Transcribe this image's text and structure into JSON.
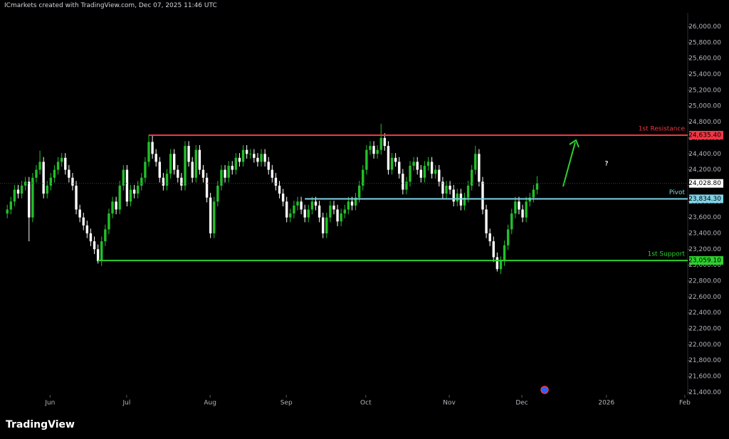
{
  "header": "ICmarkets created with TradingView.com, Dec 07, 2025 11:46 UTC",
  "footer": "TradingView",
  "chart_data": {
    "type": "candlestick",
    "up_color": "#22c02a",
    "down_color": "#ffffff",
    "open": [
      23650,
      23700,
      23800,
      23950,
      23900,
      24000,
      24050,
      23600,
      24100,
      24200,
      24300,
      23900,
      24000,
      24100,
      24200,
      24300,
      24350,
      24200,
      24100,
      24000,
      23700,
      23600,
      23500,
      23400,
      23300,
      23200,
      23050,
      23300,
      23450,
      23650,
      23800,
      23700,
      24000,
      24200,
      23800,
      23950,
      23900,
      24000,
      24100,
      24300,
      24550,
      24400,
      24300,
      24100,
      24000,
      24150,
      24400,
      24200,
      24100,
      24000,
      24500,
      24300,
      24100,
      24450,
      24200,
      24100,
      23850,
      23400,
      23800,
      24000,
      24200,
      24100,
      24250,
      24200,
      24350,
      24300,
      24450,
      24400,
      24400,
      24350,
      24300,
      24400,
      24300,
      24200,
      24100,
      24000,
      23900,
      23800,
      23600,
      23650,
      23750,
      23800,
      23700,
      23600,
      23700,
      23800,
      23750,
      23600,
      23400,
      23600,
      23750,
      23700,
      23550,
      23650,
      23700,
      23800,
      23750,
      23850,
      24000,
      24200,
      24450,
      24500,
      24400,
      24450,
      24600,
      24500,
      24200,
      24350,
      24300,
      24150,
      23950,
      24050,
      24250,
      24300,
      24200,
      24100,
      24250,
      24300,
      24150,
      24200,
      24050,
      23900,
      24000,
      23950,
      23800,
      23900,
      23750,
      23850,
      24000,
      24200,
      24400,
      24050,
      23700,
      23400,
      23300,
      23100,
      22950,
      23050,
      23250,
      23450,
      23650,
      23800,
      23700,
      23600,
      23800,
      23850,
      23950
    ],
    "high": [
      23760,
      23860,
      24010,
      24010,
      24060,
      24110,
      24110,
      24160,
      24260,
      24440,
      24360,
      24060,
      24160,
      24260,
      24360,
      24410,
      24410,
      24260,
      24160,
      24060,
      23760,
      23660,
      23560,
      23460,
      23360,
      23260,
      23360,
      23510,
      23710,
      23860,
      23860,
      24060,
      24260,
      24260,
      24010,
      24010,
      24060,
      24160,
      24360,
      24640,
      24640,
      24460,
      24360,
      24160,
      24210,
      24460,
      24460,
      24260,
      24160,
      24560,
      24560,
      24360,
      24510,
      24510,
      24260,
      24160,
      23910,
      23860,
      24060,
      24260,
      24260,
      24310,
      24310,
      24410,
      24410,
      24510,
      24510,
      24460,
      24460,
      24410,
      24460,
      24460,
      24360,
      24260,
      24160,
      24060,
      23960,
      23860,
      23710,
      23810,
      23860,
      23860,
      23760,
      23760,
      23860,
      23860,
      23810,
      23660,
      23660,
      23810,
      23810,
      23760,
      23710,
      23760,
      23860,
      23860,
      23910,
      24060,
      24260,
      24510,
      24560,
      24560,
      24510,
      24780,
      24660,
      24560,
      24410,
      24410,
      24360,
      24210,
      24110,
      24310,
      24360,
      24360,
      24260,
      24310,
      24360,
      24360,
      24260,
      24260,
      24110,
      24060,
      24060,
      24010,
      23960,
      23960,
      23910,
      24060,
      24260,
      24500,
      24460,
      24110,
      23760,
      23460,
      23360,
      23160,
      23110,
      23310,
      23510,
      23710,
      23860,
      23860,
      23760,
      23860,
      23910,
      24010,
      24120
    ],
    "low": [
      23590,
      23640,
      23740,
      23840,
      23840,
      23940,
      23300,
      23540,
      24040,
      24140,
      23840,
      23840,
      23940,
      24040,
      24140,
      24240,
      24140,
      24040,
      23940,
      23640,
      23540,
      23440,
      23340,
      23240,
      23140,
      23020,
      22990,
      23240,
      23390,
      23590,
      23640,
      23640,
      23940,
      23740,
      23740,
      23840,
      23840,
      23940,
      24040,
      24240,
      24340,
      24240,
      24040,
      23940,
      23940,
      24090,
      24140,
      24040,
      23940,
      23940,
      24240,
      24040,
      24040,
      24140,
      24040,
      23790,
      23340,
      23340,
      23740,
      23940,
      24040,
      24040,
      24140,
      24140,
      24240,
      24240,
      24340,
      24340,
      24290,
      24240,
      24240,
      24240,
      24140,
      24040,
      23940,
      23840,
      23740,
      23540,
      23540,
      23590,
      23690,
      23640,
      23540,
      23540,
      23640,
      23690,
      23540,
      23340,
      23340,
      23540,
      23640,
      23490,
      23490,
      23590,
      23640,
      23690,
      23690,
      23790,
      23940,
      24140,
      24390,
      24340,
      24340,
      24390,
      24440,
      24140,
      24140,
      24240,
      24090,
      23890,
      23890,
      23990,
      24190,
      24140,
      24040,
      24040,
      24190,
      24090,
      24090,
      23990,
      23840,
      23840,
      23890,
      23740,
      23740,
      23690,
      23690,
      23790,
      23940,
      24140,
      23990,
      23640,
      23340,
      23240,
      23040,
      22920,
      22890,
      22990,
      23190,
      23390,
      23590,
      23640,
      23540,
      23540,
      23740,
      23790,
      23890
    ],
    "close": [
      23700,
      23800,
      23950,
      23900,
      24000,
      24050,
      23600,
      24100,
      24200,
      24300,
      23900,
      24000,
      24100,
      24200,
      24300,
      24350,
      24200,
      24100,
      24000,
      23700,
      23600,
      23500,
      23400,
      23300,
      23200,
      23050,
      23300,
      23450,
      23650,
      23800,
      23700,
      24000,
      24200,
      23800,
      23950,
      23900,
      24000,
      24100,
      24300,
      24550,
      24400,
      24300,
      24100,
      24000,
      24150,
      24400,
      24200,
      24100,
      24000,
      24500,
      24300,
      24100,
      24450,
      24200,
      24100,
      23850,
      23400,
      23800,
      24000,
      24200,
      24100,
      24250,
      24200,
      24350,
      24300,
      24450,
      24400,
      24400,
      24350,
      24300,
      24400,
      24300,
      24200,
      24100,
      24000,
      23900,
      23800,
      23600,
      23650,
      23750,
      23800,
      23700,
      23600,
      23700,
      23800,
      23750,
      23600,
      23400,
      23600,
      23750,
      23700,
      23550,
      23650,
      23700,
      23800,
      23750,
      23850,
      24000,
      24200,
      24450,
      24500,
      24400,
      24450,
      24600,
      24500,
      24200,
      24350,
      24300,
      24150,
      23950,
      24050,
      24250,
      24300,
      24200,
      24100,
      24250,
      24300,
      24150,
      24200,
      24050,
      23900,
      24000,
      23950,
      23800,
      23900,
      23750,
      23850,
      24000,
      24200,
      24400,
      24050,
      23700,
      23400,
      23300,
      23100,
      22950,
      23050,
      23250,
      23450,
      23650,
      23800,
      23700,
      23600,
      23800,
      23850,
      23950,
      24028.8
    ],
    "last_price": {
      "value": 24028.8,
      "label": "24,028.80"
    },
    "xlim": [
      -2,
      187.5
    ],
    "xticks": [
      {
        "value": 11.8,
        "label": "Jun"
      },
      {
        "value": 32.9,
        "label": "Jul"
      },
      {
        "value": 55.9,
        "label": "Aug"
      },
      {
        "value": 76.9,
        "label": "Sep"
      },
      {
        "value": 98.8,
        "label": "Oct"
      },
      {
        "value": 121.8,
        "label": "Nov"
      },
      {
        "value": 141.8,
        "label": "Dec"
      },
      {
        "value": 165.1,
        "label": "2026"
      },
      {
        "value": 186.7,
        "label": "Feb"
      }
    ],
    "ylim": [
      21180,
      26300
    ],
    "yticks": [
      {
        "value": 21400,
        "label": "21,400.00"
      },
      {
        "value": 21600,
        "label": "21,600.00"
      },
      {
        "value": 21800,
        "label": "21,800.00"
      },
      {
        "value": 22000,
        "label": "22,000.00"
      },
      {
        "value": 22200,
        "label": "22,200.00"
      },
      {
        "value": 22400,
        "label": "22,400.00"
      },
      {
        "value": 22600,
        "label": "22,600.00"
      },
      {
        "value": 22800,
        "label": "22,800.00"
      },
      {
        "value": 23000,
        "label": "23,000.00"
      },
      {
        "value": 23200,
        "label": "23,200.00"
      },
      {
        "value": 23400,
        "label": "23,400.00"
      },
      {
        "value": 23600,
        "label": "23,600.00"
      },
      {
        "value": 23800,
        "label": "23,800.00"
      },
      {
        "value": 24000,
        "label": "24,000.00"
      },
      {
        "value": 24200,
        "label": "24,200.00"
      },
      {
        "value": 24400,
        "label": "24,400.00"
      },
      {
        "value": 24600,
        "label": "24,600.00"
      },
      {
        "value": 24800,
        "label": "24,800.00"
      },
      {
        "value": 25000,
        "label": "25,000.00"
      },
      {
        "value": 25200,
        "label": "25,200.00"
      },
      {
        "value": 25400,
        "label": "25,400.00"
      },
      {
        "value": 25600,
        "label": "25,600.00"
      },
      {
        "value": 25800,
        "label": "25,800.00"
      },
      {
        "value": 26000,
        "label": "26,000.00"
      }
    ],
    "levels": [
      {
        "name": "1st Resistance",
        "value": 24635.4,
        "label": "24,635.40",
        "start": 39,
        "color": "#f23645"
      },
      {
        "name": "Pivot",
        "value": 23834.3,
        "label": "23,834.30",
        "start": 82,
        "color": "#7fd3e6"
      },
      {
        "name": "1st Support",
        "value": 23059.1,
        "label": "23,059.10",
        "start": 25,
        "color": "#2ed12e"
      }
    ],
    "annotation": "?"
  }
}
